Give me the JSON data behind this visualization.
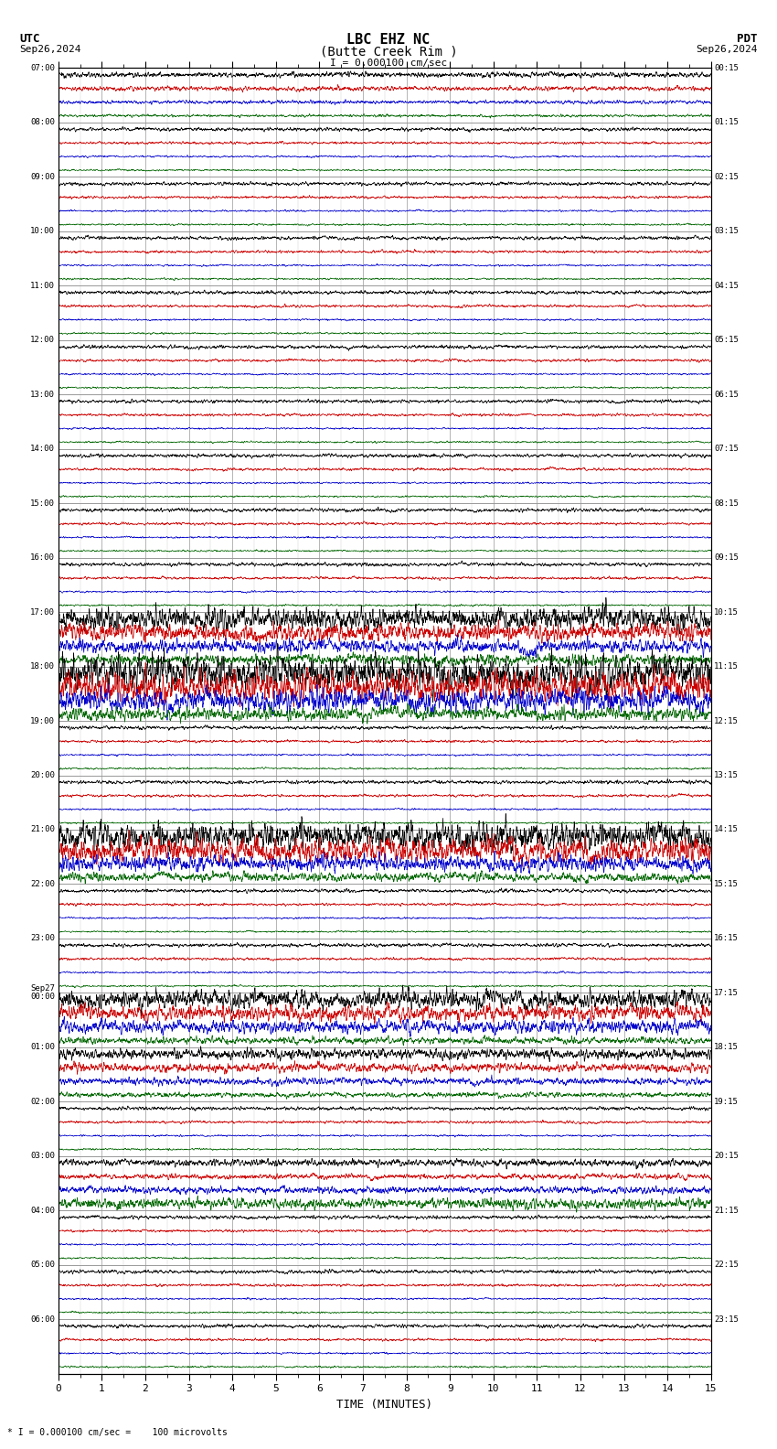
{
  "title_line1": "LBC EHZ NC",
  "title_line2": "(Butte Creek Rim )",
  "scale_label": "I = 0.000100 cm/sec",
  "left_header": "UTC",
  "left_date": "Sep26,2024",
  "right_header": "PDT",
  "right_date": "Sep26,2024",
  "bottom_label": "TIME (MINUTES)",
  "bottom_note": "* I = 0.000100 cm/sec =    100 microvolts",
  "left_times": [
    "07:00",
    "08:00",
    "09:00",
    "10:00",
    "11:00",
    "12:00",
    "13:00",
    "14:00",
    "15:00",
    "16:00",
    "17:00",
    "18:00",
    "19:00",
    "20:00",
    "21:00",
    "22:00",
    "23:00",
    "Sep27\n00:00",
    "01:00",
    "02:00",
    "03:00",
    "04:00",
    "05:00",
    "06:00"
  ],
  "right_times": [
    "00:15",
    "01:15",
    "02:15",
    "03:15",
    "04:15",
    "05:15",
    "06:15",
    "07:15",
    "08:15",
    "09:15",
    "10:15",
    "11:15",
    "12:15",
    "13:15",
    "14:15",
    "15:15",
    "16:15",
    "17:15",
    "18:15",
    "19:15",
    "20:15",
    "21:15",
    "22:15",
    "23:15"
  ],
  "n_rows": 24,
  "lines_per_row": 4,
  "line_colors": [
    "#000000",
    "#cc0000",
    "#0000cc",
    "#006600"
  ],
  "bg_color": "#ffffff",
  "grid_color_major": "#999999",
  "grid_color_minor": "#cccccc",
  "figsize": [
    8.5,
    15.84
  ],
  "dpi": 100,
  "xmin": 0,
  "xmax": 15
}
